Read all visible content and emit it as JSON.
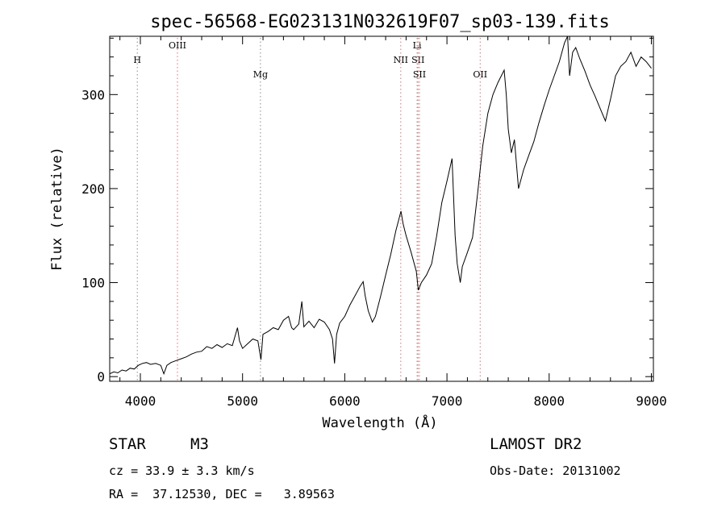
{
  "chart_data": {
    "type": "line",
    "title": "spec-56568-EG023131N032619F07_sp03-139.fits",
    "xlabel": "Wavelength (Å)",
    "ylabel": "Flux (relative)",
    "xlim": [
      3700,
      9020
    ],
    "ylim": [
      -5,
      362
    ],
    "xticks": [
      4000,
      5000,
      6000,
      7000,
      8000,
      9000
    ],
    "yticks": [
      0,
      100,
      200,
      300
    ],
    "grid": false,
    "series": [
      {
        "color": "#000000",
        "points": [
          [
            3700,
            3
          ],
          [
            3740,
            5
          ],
          [
            3780,
            4
          ],
          [
            3820,
            7
          ],
          [
            3860,
            6
          ],
          [
            3900,
            9
          ],
          [
            3940,
            8
          ],
          [
            3980,
            12
          ],
          [
            4020,
            14
          ],
          [
            4060,
            15
          ],
          [
            4100,
            13
          ],
          [
            4150,
            14
          ],
          [
            4200,
            12
          ],
          [
            4230,
            3
          ],
          [
            4260,
            12
          ],
          [
            4300,
            15
          ],
          [
            4350,
            17
          ],
          [
            4400,
            19
          ],
          [
            4450,
            21
          ],
          [
            4500,
            24
          ],
          [
            4550,
            26
          ],
          [
            4600,
            27
          ],
          [
            4650,
            32
          ],
          [
            4700,
            30
          ],
          [
            4750,
            34
          ],
          [
            4800,
            31
          ],
          [
            4850,
            35
          ],
          [
            4900,
            33
          ],
          [
            4950,
            52
          ],
          [
            4970,
            38
          ],
          [
            5000,
            30
          ],
          [
            5050,
            35
          ],
          [
            5100,
            40
          ],
          [
            5150,
            38
          ],
          [
            5180,
            18
          ],
          [
            5200,
            45
          ],
          [
            5250,
            48
          ],
          [
            5300,
            52
          ],
          [
            5350,
            50
          ],
          [
            5400,
            60
          ],
          [
            5450,
            64
          ],
          [
            5480,
            52
          ],
          [
            5500,
            50
          ],
          [
            5550,
            56
          ],
          [
            5580,
            80
          ],
          [
            5600,
            53
          ],
          [
            5650,
            59
          ],
          [
            5700,
            52
          ],
          [
            5750,
            61
          ],
          [
            5800,
            58
          ],
          [
            5850,
            50
          ],
          [
            5880,
            40
          ],
          [
            5900,
            14
          ],
          [
            5920,
            45
          ],
          [
            5950,
            57
          ],
          [
            6000,
            64
          ],
          [
            6050,
            76
          ],
          [
            6100,
            86
          ],
          [
            6150,
            96
          ],
          [
            6180,
            101
          ],
          [
            6200,
            86
          ],
          [
            6230,
            70
          ],
          [
            6270,
            58
          ],
          [
            6300,
            64
          ],
          [
            6350,
            85
          ],
          [
            6400,
            108
          ],
          [
            6450,
            130
          ],
          [
            6500,
            155
          ],
          [
            6550,
            176
          ],
          [
            6570,
            163
          ],
          [
            6600,
            150
          ],
          [
            6650,
            132
          ],
          [
            6700,
            112
          ],
          [
            6720,
            92
          ],
          [
            6750,
            100
          ],
          [
            6800,
            108
          ],
          [
            6850,
            120
          ],
          [
            6900,
            150
          ],
          [
            6950,
            185
          ],
          [
            7000,
            208
          ],
          [
            7050,
            232
          ],
          [
            7080,
            150
          ],
          [
            7100,
            120
          ],
          [
            7130,
            100
          ],
          [
            7150,
            117
          ],
          [
            7200,
            132
          ],
          [
            7250,
            148
          ],
          [
            7300,
            195
          ],
          [
            7350,
            245
          ],
          [
            7400,
            280
          ],
          [
            7450,
            300
          ],
          [
            7500,
            313
          ],
          [
            7560,
            326
          ],
          [
            7580,
            300
          ],
          [
            7600,
            263
          ],
          [
            7630,
            238
          ],
          [
            7660,
            252
          ],
          [
            7700,
            200
          ],
          [
            7750,
            220
          ],
          [
            7800,
            235
          ],
          [
            7850,
            250
          ],
          [
            7900,
            270
          ],
          [
            7950,
            288
          ],
          [
            8000,
            305
          ],
          [
            8050,
            320
          ],
          [
            8100,
            335
          ],
          [
            8150,
            355
          ],
          [
            8180,
            362
          ],
          [
            8200,
            320
          ],
          [
            8230,
            345
          ],
          [
            8260,
            350
          ],
          [
            8300,
            338
          ],
          [
            8350,
            325
          ],
          [
            8400,
            310
          ],
          [
            8450,
            298
          ],
          [
            8500,
            285
          ],
          [
            8550,
            272
          ],
          [
            8600,
            295
          ],
          [
            8650,
            320
          ],
          [
            8700,
            330
          ],
          [
            8750,
            335
          ],
          [
            8800,
            345
          ],
          [
            8850,
            330
          ],
          [
            8900,
            340
          ],
          [
            8950,
            335
          ],
          [
            9000,
            328
          ]
        ]
      }
    ],
    "line_markers": [
      {
        "label": "H",
        "x": 3970,
        "row": 1,
        "color": "#8a8a8a"
      },
      {
        "label": "OIII",
        "x": 4363,
        "row": 0,
        "color": "#d97070"
      },
      {
        "label": "Mg",
        "x": 5175,
        "row": 2,
        "color": "#8a8a8a"
      },
      {
        "label": "NII",
        "x": 6548,
        "row": 1,
        "color": "#d97070"
      },
      {
        "label": "Li",
        "x": 6708,
        "row": 0,
        "color": "#8a8a8a"
      },
      {
        "label": "SII",
        "x": 6717,
        "row": 1,
        "color": "#d97070"
      },
      {
        "label": "SII",
        "x": 6731,
        "row": 2,
        "color": "#d97070"
      },
      {
        "label": "OII",
        "x": 7325,
        "row": 2,
        "color": "#d97070"
      }
    ]
  },
  "info": {
    "object_class": "STAR",
    "subclass": "M3",
    "survey": "LAMOST DR2",
    "cz": "cz = 33.9 ± 3.3 km/s",
    "obs_date": "Obs-Date: 20131002",
    "coords": "RA =  37.12530, DEC =   3.89563"
  }
}
